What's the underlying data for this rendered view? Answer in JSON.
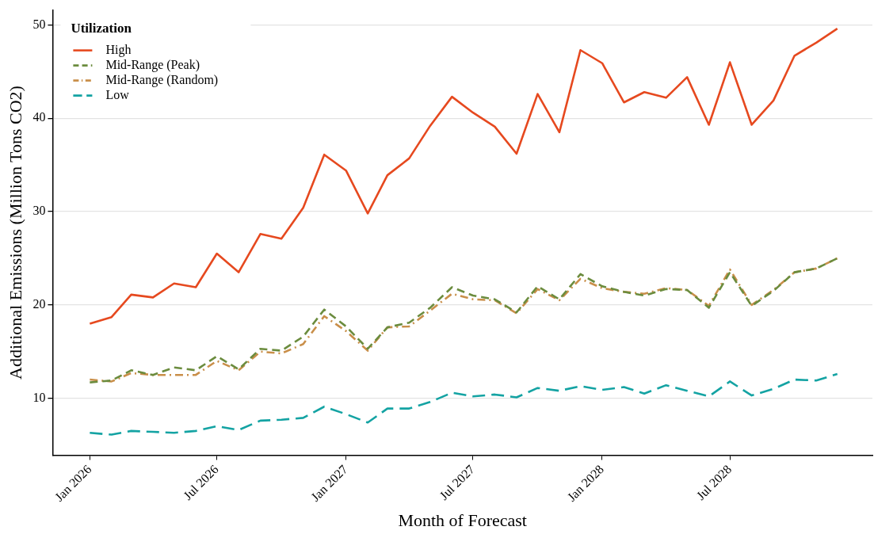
{
  "chart_data": {
    "type": "line",
    "xlabel": "Month of Forecast",
    "ylabel": "Additional Emissions (Million Tons CO2)",
    "legend_title": "Utilization",
    "legend": "top left",
    "grid": "y",
    "marker": "none",
    "x": [
      "2026-01",
      "2026-02",
      "2026-03",
      "2026-04",
      "2026-05",
      "2026-06",
      "2026-07",
      "2026-08",
      "2026-09",
      "2026-10",
      "2026-11",
      "2026-12",
      "2027-01",
      "2027-02",
      "2027-03",
      "2027-04",
      "2027-05",
      "2027-06",
      "2027-07",
      "2027-08",
      "2027-09",
      "2027-10",
      "2027-11",
      "2027-12",
      "2028-01",
      "2028-02",
      "2028-03",
      "2028-04",
      "2028-05",
      "2028-06",
      "2028-07",
      "2028-08",
      "2028-09",
      "2028-10",
      "2028-11",
      "2028-12"
    ],
    "xlim": [
      "2025-11-09",
      "2029-01-20"
    ],
    "xticks": [
      {
        "value": "2026-01",
        "label": "Jan 2026"
      },
      {
        "value": "2026-07",
        "label": "Jul 2026"
      },
      {
        "value": "2027-01",
        "label": "Jan 2027"
      },
      {
        "value": "2027-07",
        "label": "Jul 2027"
      },
      {
        "value": "2028-01",
        "label": "Jan 2028"
      },
      {
        "value": "2028-07",
        "label": "Jul 2028"
      }
    ],
    "ylim": [
      3.9,
      51.6
    ],
    "yticks": [
      10,
      20,
      30,
      40,
      50
    ],
    "series": [
      {
        "name": "High",
        "color": "#e6491f",
        "line_style": "solid",
        "values": [
          18.0,
          18.7,
          21.1,
          20.8,
          22.3,
          21.9,
          25.5,
          23.5,
          27.6,
          27.1,
          30.4,
          36.1,
          34.4,
          29.8,
          33.9,
          35.7,
          39.2,
          42.3,
          40.6,
          39.1,
          36.2,
          42.6,
          38.5,
          47.3,
          45.9,
          41.7,
          42.8,
          42.2,
          44.4,
          39.3,
          46.0,
          39.3,
          41.9,
          46.7,
          48.1,
          49.6
        ]
      },
      {
        "name": "Mid-Range (Peak)",
        "color": "#6b8c3e",
        "line_style": "dashed",
        "values": [
          11.7,
          11.9,
          13.0,
          12.5,
          13.3,
          13.0,
          14.5,
          13.1,
          15.3,
          15.1,
          16.6,
          19.5,
          17.7,
          15.3,
          17.6,
          18.1,
          19.7,
          21.9,
          21.0,
          20.6,
          19.2,
          22.0,
          20.6,
          23.3,
          22.0,
          21.4,
          21.0,
          21.7,
          21.6,
          19.7,
          23.5,
          19.9,
          21.5,
          23.5,
          23.9,
          25.0
        ]
      },
      {
        "name": "Mid-Range (Random)",
        "color": "#c98f4a",
        "line_style": "dashdot",
        "values": [
          12.0,
          11.8,
          12.7,
          12.5,
          12.5,
          12.5,
          14.0,
          13.0,
          15.0,
          14.8,
          15.8,
          18.8,
          17.2,
          15.1,
          17.6,
          17.7,
          19.4,
          21.2,
          20.6,
          20.5,
          19.1,
          21.7,
          20.5,
          22.8,
          21.8,
          21.4,
          21.2,
          21.8,
          21.6,
          19.9,
          23.8,
          20.0,
          21.6,
          23.5,
          23.9,
          25.0
        ]
      },
      {
        "name": "Low",
        "color": "#14a3a3",
        "line_style": "longdash",
        "values": [
          6.3,
          6.1,
          6.5,
          6.4,
          6.3,
          6.5,
          7.0,
          6.6,
          7.6,
          7.7,
          7.9,
          9.1,
          8.3,
          7.4,
          8.9,
          8.9,
          9.6,
          10.6,
          10.2,
          10.4,
          10.1,
          11.1,
          10.8,
          11.3,
          10.9,
          11.2,
          10.5,
          11.4,
          10.8,
          10.2,
          11.8,
          10.3,
          11.0,
          12.0,
          11.9,
          12.6
        ]
      }
    ]
  }
}
